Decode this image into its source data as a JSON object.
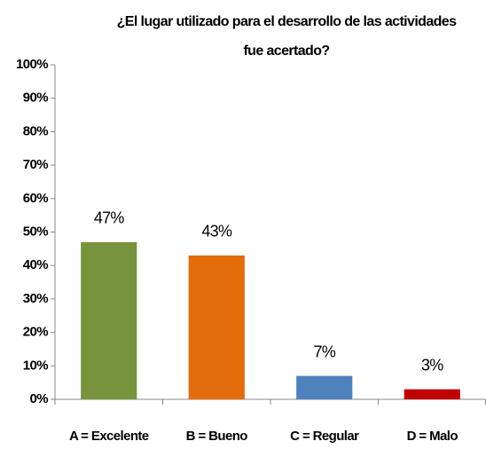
{
  "chart_data": {
    "type": "bar",
    "title": [
      "¿El lugar  utilizado para el desarrollo de las actividades",
      "fue acertado?"
    ],
    "categories": [
      "A = Excelente",
      "B =  Bueno",
      "C = Regular",
      "D = Malo"
    ],
    "values": [
      47,
      43,
      7,
      3
    ],
    "value_labels": [
      "47%",
      "43%",
      "7%",
      "3%"
    ],
    "colors": [
      "#77933c",
      "#e46c0a",
      "#4f81bd",
      "#c00000"
    ],
    "ylim": [
      0,
      100
    ],
    "yticks": [
      {
        "value": 0,
        "label": "0%"
      },
      {
        "value": 10,
        "label": "10%"
      },
      {
        "value": 20,
        "label": "20%"
      },
      {
        "value": 30,
        "label": "30%"
      },
      {
        "value": 40,
        "label": "40%"
      },
      {
        "value": 50,
        "label": "50%"
      },
      {
        "value": 60,
        "label": "60%"
      },
      {
        "value": 70,
        "label": "70%"
      },
      {
        "value": 80,
        "label": "80%"
      },
      {
        "value": 90,
        "label": "90%"
      },
      {
        "value": 100,
        "label": "100%"
      }
    ],
    "grid": false
  }
}
